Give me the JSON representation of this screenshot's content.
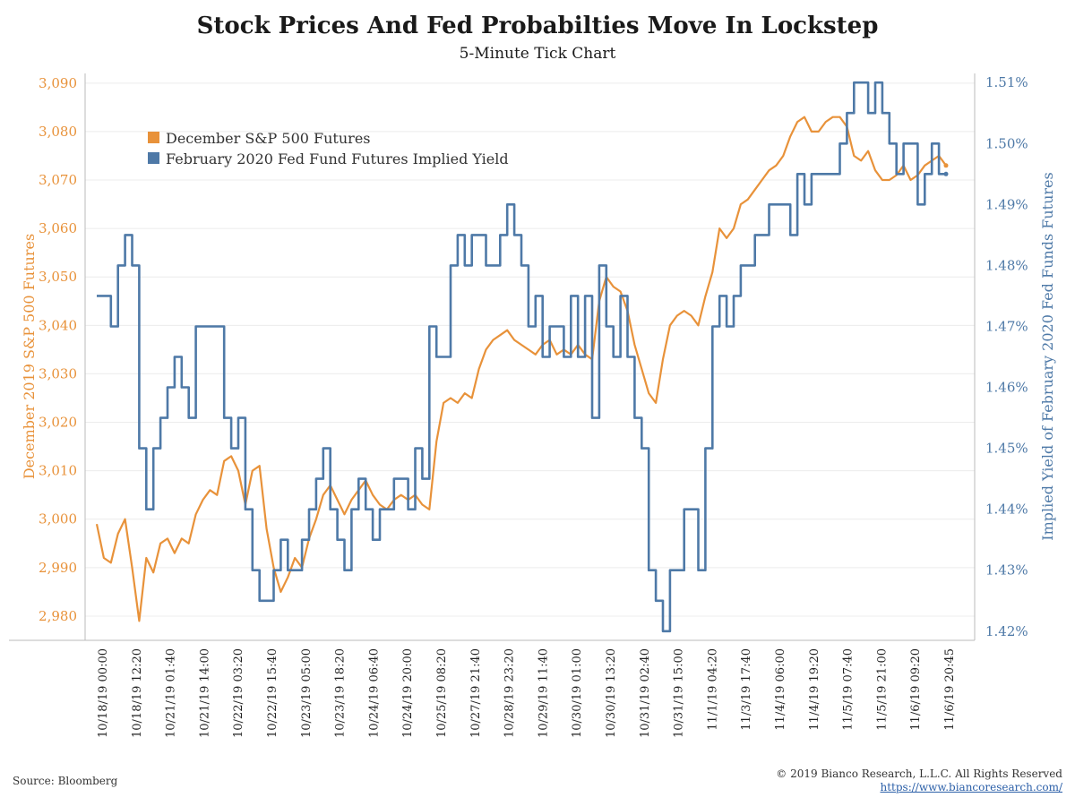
{
  "header": {
    "title": "Stock Prices And Fed Probabilties Move In Lockstep",
    "subtitle": "5-Minute Tick Chart"
  },
  "footer": {
    "source": "Source: Bloomberg",
    "copyright": "© 2019 Bianco Research, L.L.C. All Rights Reserved",
    "url": "https://www.biancoresearch.com/"
  },
  "colors": {
    "sp500": "#E8923A",
    "fedfunds": "#4E79A7",
    "grid": "#ececec",
    "axis": "#bbbbbb"
  },
  "chart_data": {
    "type": "line",
    "title": "Stock Prices And Fed Probabilties Move In Lockstep",
    "subtitle": "5-Minute Tick Chart",
    "ylabel_left": "December 2019 S&P 500 Futures",
    "ylabel_right": "Implied Yield of February 2020 Fed Funds Futures",
    "ylim_left": [
      2975,
      3092
    ],
    "ylim_right": [
      1.4185,
      1.5115
    ],
    "yticks_left": [
      "2,980",
      "2,990",
      "3,000",
      "3,010",
      "3,020",
      "3,030",
      "3,040",
      "3,050",
      "3,060",
      "3,070",
      "3,080",
      "3,090"
    ],
    "yticks_left_values": [
      2980,
      2990,
      3000,
      3010,
      3020,
      3030,
      3040,
      3050,
      3060,
      3070,
      3080,
      3090
    ],
    "yticks_right": [
      "1.42%",
      "1.43%",
      "1.44%",
      "1.45%",
      "1.46%",
      "1.47%",
      "1.48%",
      "1.49%",
      "1.50%",
      "1.51%"
    ],
    "yticks_right_values": [
      1.42,
      1.43,
      1.44,
      1.45,
      1.46,
      1.47,
      1.48,
      1.49,
      1.5,
      1.51
    ],
    "xticks": [
      "10/18/19 00:00",
      "10/18/19 12:20",
      "10/21/19 01:40",
      "10/21/19 14:00",
      "10/22/19 03:20",
      "10/22/19 15:40",
      "10/23/19 05:00",
      "10/23/19 18:20",
      "10/24/19 06:40",
      "10/24/19 20:00",
      "10/25/19 08:20",
      "10/27/19 21:40",
      "10/28/19 23:20",
      "10/29/19 11:40",
      "10/30/19 01:00",
      "10/30/19 13:20",
      "10/31/19 02:40",
      "10/31/19 15:00",
      "11/1/19 04:20",
      "11/3/19 17:40",
      "11/4/19 06:00",
      "11/4/19 19:20",
      "11/5/19 07:40",
      "11/5/19 21:00",
      "11/6/19 09:20",
      "11/6/19 20:45"
    ],
    "legend_position": "top-left",
    "grid": true,
    "series": [
      {
        "name": "December S&P 500 Futures",
        "axis": "left",
        "color": "#E8923A",
        "values": [
          2999,
          2992,
          2991,
          2997,
          3000,
          2990,
          2979,
          2992,
          2989,
          2995,
          2996,
          2993,
          2996,
          2995,
          3001,
          3004,
          3006,
          3005,
          3012,
          3013,
          3010,
          3003,
          3010,
          3011,
          2998,
          2990,
          2985,
          2988,
          2992,
          2990,
          2996,
          3000,
          3005,
          3007,
          3004,
          3001,
          3004,
          3006,
          3008,
          3005,
          3003,
          3002,
          3004,
          3005,
          3004,
          3005,
          3003,
          3002,
          3016,
          3024,
          3025,
          3024,
          3026,
          3025,
          3031,
          3035,
          3037,
          3038,
          3039,
          3037,
          3036,
          3035,
          3034,
          3036,
          3037,
          3034,
          3035,
          3034,
          3036,
          3034,
          3033,
          3045,
          3050,
          3048,
          3047,
          3043,
          3036,
          3031,
          3026,
          3024,
          3033,
          3040,
          3042,
          3043,
          3042,
          3040,
          3046,
          3051,
          3060,
          3058,
          3060,
          3065,
          3066,
          3068,
          3070,
          3072,
          3073,
          3075,
          3079,
          3082,
          3083,
          3080,
          3080,
          3082,
          3083,
          3083,
          3081,
          3075,
          3074,
          3076,
          3072,
          3070,
          3070,
          3071,
          3073,
          3070,
          3071,
          3073,
          3074,
          3075,
          3073
        ],
        "visible_series_name": "December S&P 500 Futures"
      },
      {
        "name": "February 2020 Fed Fund Futures Implied Yield",
        "axis": "right",
        "color": "#4E79A7",
        "values": [
          1.475,
          1.475,
          1.47,
          1.48,
          1.485,
          1.48,
          1.45,
          1.44,
          1.45,
          1.455,
          1.46,
          1.465,
          1.46,
          1.455,
          1.47,
          1.47,
          1.47,
          1.47,
          1.455,
          1.45,
          1.455,
          1.44,
          1.43,
          1.425,
          1.425,
          1.43,
          1.435,
          1.43,
          1.43,
          1.435,
          1.44,
          1.445,
          1.45,
          1.44,
          1.435,
          1.43,
          1.44,
          1.445,
          1.44,
          1.435,
          1.44,
          1.44,
          1.445,
          1.445,
          1.44,
          1.45,
          1.445,
          1.47,
          1.465,
          1.465,
          1.48,
          1.485,
          1.48,
          1.485,
          1.485,
          1.48,
          1.48,
          1.485,
          1.49,
          1.485,
          1.48,
          1.47,
          1.475,
          1.465,
          1.47,
          1.47,
          1.465,
          1.475,
          1.465,
          1.475,
          1.455,
          1.48,
          1.47,
          1.465,
          1.475,
          1.465,
          1.455,
          1.45,
          1.43,
          1.425,
          1.42,
          1.43,
          1.43,
          1.44,
          1.44,
          1.43,
          1.45,
          1.47,
          1.475,
          1.47,
          1.475,
          1.48,
          1.48,
          1.485,
          1.485,
          1.49,
          1.49,
          1.49,
          1.485,
          1.495,
          1.49,
          1.495,
          1.495,
          1.495,
          1.495,
          1.5,
          1.505,
          1.51,
          1.51,
          1.505,
          1.51,
          1.505,
          1.5,
          1.495,
          1.5,
          1.5,
          1.49,
          1.495,
          1.5,
          1.495,
          1.495
        ],
        "visible_series_name": "February 2020 Fed Fund Futures Implied Yield"
      }
    ]
  }
}
